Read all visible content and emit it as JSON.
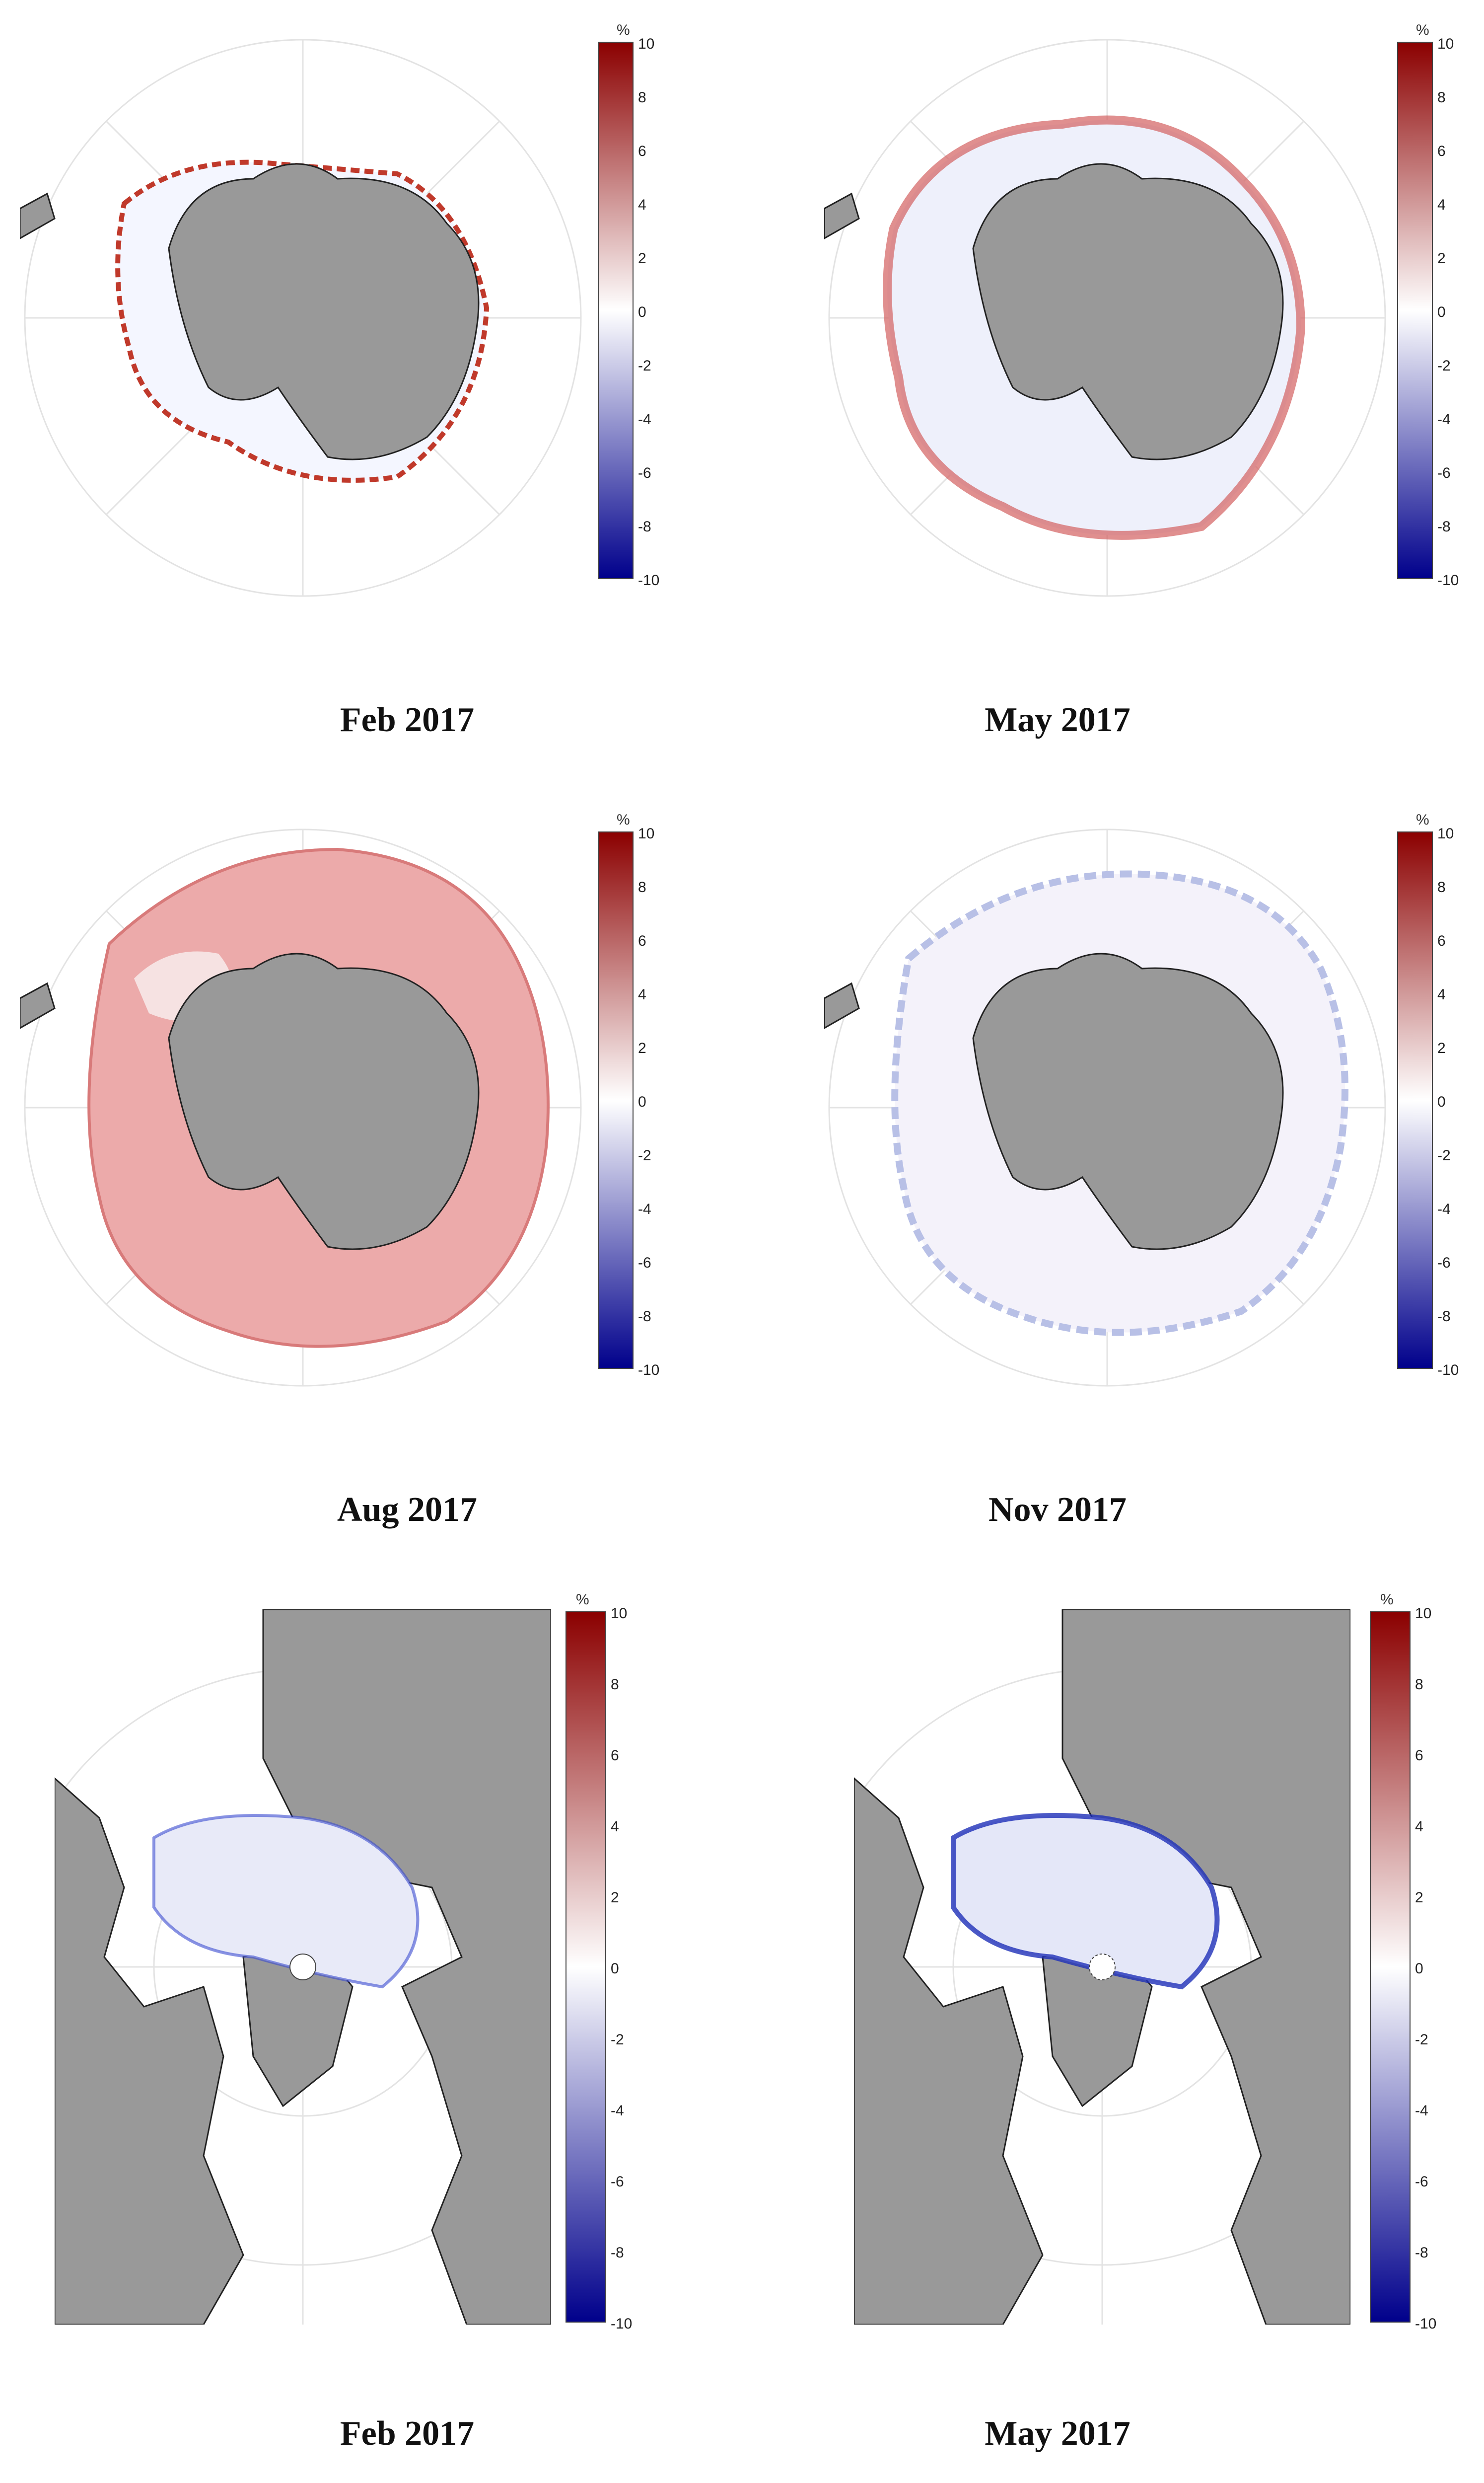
{
  "figure": {
    "panels": [
      {
        "id": "ant-feb",
        "region": "Antarctic",
        "caption": "Feb 2017",
        "pattern": "coastal-fringe"
      },
      {
        "id": "ant-may",
        "region": "Antarctic",
        "caption": "May 2017",
        "pattern": "mixed-red-rim"
      },
      {
        "id": "ant-aug",
        "region": "Antarctic",
        "caption": "Aug 2017",
        "pattern": "widespread-red"
      },
      {
        "id": "ant-nov",
        "region": "Antarctic",
        "caption": "Nov 2017",
        "pattern": "mixed-noisy"
      },
      {
        "id": "arc-feb",
        "region": "Arctic",
        "caption": "Feb 2017",
        "pattern": "light-blue"
      },
      {
        "id": "arc-may",
        "region": "Arctic",
        "caption": "May 2017",
        "pattern": "blue-edges"
      }
    ],
    "colorbar": {
      "unit": "%",
      "min": -10,
      "max": 10,
      "ticks": [
        "10",
        "8",
        "6",
        "4",
        "2",
        "0",
        "-2",
        "-4",
        "-6",
        "-8",
        "-10"
      ],
      "colors": {
        "high": "#8b0000",
        "mid": "#ffffff",
        "low": "#00008b"
      }
    },
    "colors": {
      "land": "#999999",
      "ocean": "#ffffff",
      "grid": "#e2e2e2",
      "coast": "#222222"
    }
  }
}
